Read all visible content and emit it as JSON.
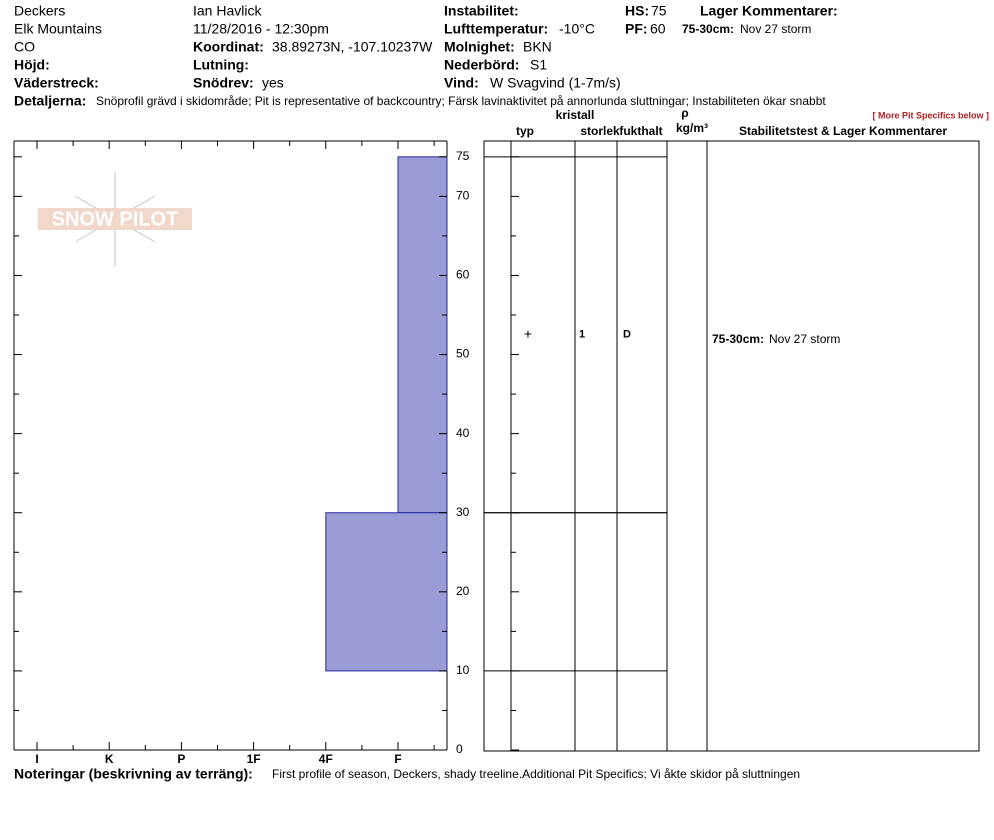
{
  "header": {
    "location": "Deckers",
    "range": "Elk Mountains",
    "state": "CO",
    "observer": "Ian Havlick",
    "datetime": "11/28/2016 - 12:30pm",
    "instability_label": "Instabilitet:",
    "air_temp_label": "Lufttemperatur:",
    "air_temp": "-10°C",
    "coord_label": "Koordinat:",
    "coord": "38.89273N, -107.10237W",
    "sky_label": "Molnighet:",
    "sky": "BKN",
    "elevation_label": "Höjd:",
    "slope_label": "Lutning:",
    "precip_label": "Nederbörd:",
    "precip": "S1",
    "aspect_label": "Väderstreck:",
    "wind_loading_label": "Snödrev:",
    "wind_loading": "yes",
    "wind_label": "Vind:",
    "wind": "W Svagvind (1-7m/s)",
    "hs_label": "HS:",
    "hs": 75,
    "pf_label": "PF:",
    "pf": 60,
    "layer_comments_label": "Lager Kommentarer:",
    "layer_comment_range": "75-30cm:",
    "layer_comment": "Nov 27 storm",
    "details_label": "Detaljerna:",
    "details": "Snöprofil grävd i skidområde;  Pit is representative of backcountry;  Färsk lavinaktivitet på annorlunda sluttningar;  Instabiliteten ökar snabbt"
  },
  "logo": "SNOW PILOT",
  "more_link": "[ More Pit Specifics below ]",
  "table_headers": {
    "type": "typ",
    "crystal": "kristall",
    "size": "storlek",
    "moisture": "fukthalt",
    "rho": "ρ",
    "density_unit": "kg/m³",
    "comments": "Stabilitetstest & Lager Kommentarer"
  },
  "chart_data": {
    "type": "hardness-profile",
    "hardness_categories": [
      "I",
      "K",
      "P",
      "1F",
      "4F",
      "F"
    ],
    "ylim": [
      0,
      77
    ],
    "yticks": [
      0,
      10,
      20,
      30,
      40,
      50,
      60,
      70,
      75
    ],
    "minor_yticks": [
      5,
      15,
      25,
      35,
      45,
      55,
      65
    ],
    "color": "#9b9bd6",
    "layers": [
      {
        "top": 75,
        "bottom": 30,
        "hardness": "F",
        "grain_type": "+",
        "grain_size": 1,
        "moisture": "D"
      },
      {
        "top": 30,
        "bottom": 10,
        "hardness": "4F"
      }
    ]
  },
  "notes_label": "Noteringar (beskrivning av terräng):",
  "notes": "First profile of season, Deckers, shady treeline.Additional Pit Specifics: Vi åkte skidor på sluttningen"
}
